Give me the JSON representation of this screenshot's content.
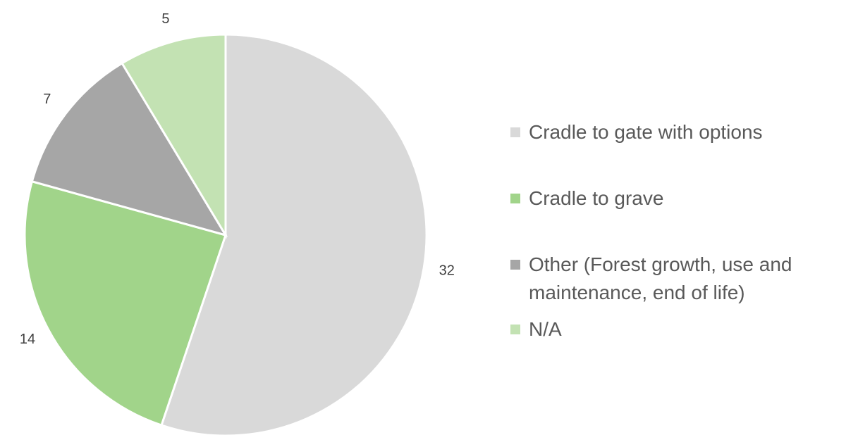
{
  "chart_data": {
    "type": "pie",
    "categories": [
      "Cradle to gate with options",
      "Cradle to grave",
      "Other (Forest growth, use and maintenance, end of life)",
      "N/A"
    ],
    "values": [
      32,
      14,
      7,
      5
    ],
    "colors": [
      "#d9d9d9",
      "#a1d48a",
      "#a6a6a6",
      "#c3e2b3"
    ]
  }
}
